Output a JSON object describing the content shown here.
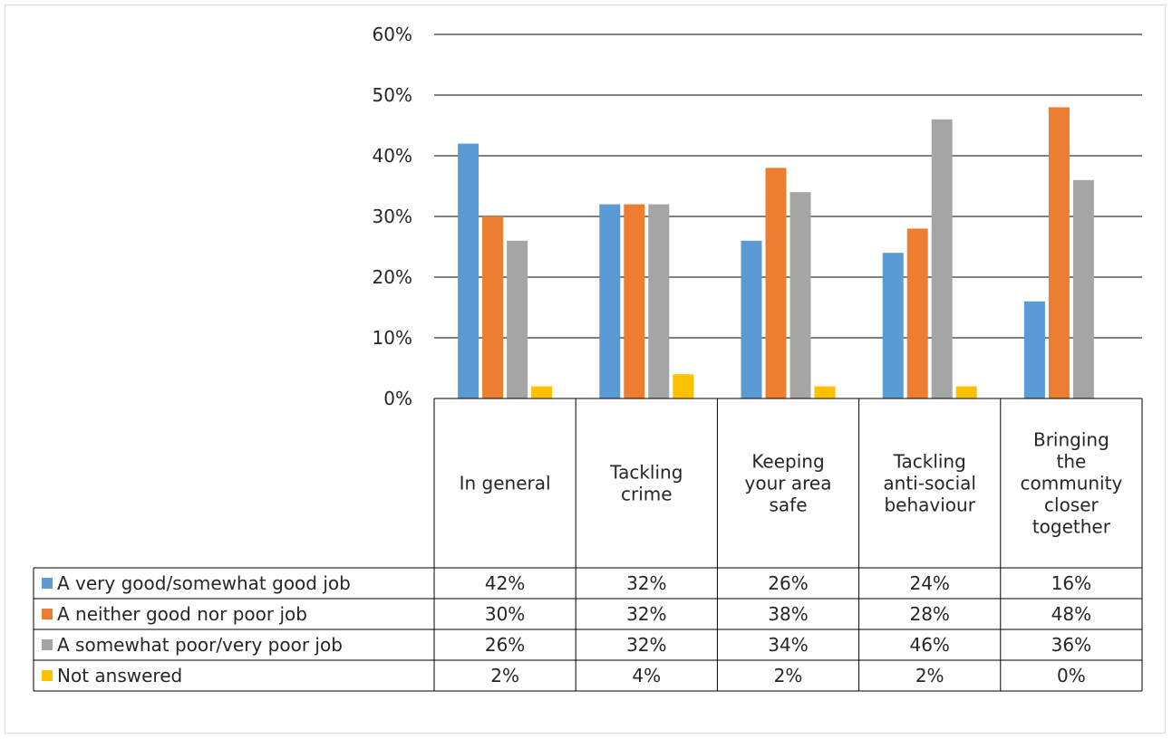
{
  "chart_data": {
    "type": "bar",
    "title": "",
    "xlabel": "",
    "ylabel": "",
    "ylim": [
      0,
      60
    ],
    "y_ticks": [
      0,
      10,
      20,
      30,
      40,
      50,
      60
    ],
    "y_tick_labels": [
      "0%",
      "10%",
      "20%",
      "30%",
      "40%",
      "50%",
      "60%"
    ],
    "grid": true,
    "legend": "data-table",
    "categories": [
      "In general",
      "Tackling crime",
      "Keeping your area safe",
      "Tackling anti-social behaviour",
      "Bringing the community closer together"
    ],
    "category_lines": [
      [
        "In general"
      ],
      [
        "Tackling",
        "crime"
      ],
      [
        "Keeping",
        "your area",
        "safe"
      ],
      [
        "Tackling",
        "anti-social",
        "behaviour"
      ],
      [
        "Bringing",
        "the",
        "community",
        "closer",
        "together"
      ]
    ],
    "series": [
      {
        "name": "A very good/somewhat good job",
        "color": "#5b9bd5",
        "values": [
          42,
          32,
          26,
          24,
          16
        ],
        "labels": [
          "42%",
          "32%",
          "26%",
          "24%",
          "16%"
        ]
      },
      {
        "name": "A neither good nor poor job",
        "color": "#ed7d31",
        "values": [
          30,
          32,
          38,
          28,
          48
        ],
        "labels": [
          "30%",
          "32%",
          "38%",
          "28%",
          "48%"
        ]
      },
      {
        "name": "A somewhat poor/very poor job",
        "color": "#a5a5a5",
        "values": [
          26,
          32,
          34,
          46,
          36
        ],
        "labels": [
          "26%",
          "32%",
          "34%",
          "46%",
          "36%"
        ]
      },
      {
        "name": "Not answered",
        "color": "#ffc000",
        "values": [
          2,
          4,
          2,
          2,
          0
        ],
        "labels": [
          "2%",
          "4%",
          "2%",
          "2%",
          "0%"
        ]
      }
    ]
  }
}
